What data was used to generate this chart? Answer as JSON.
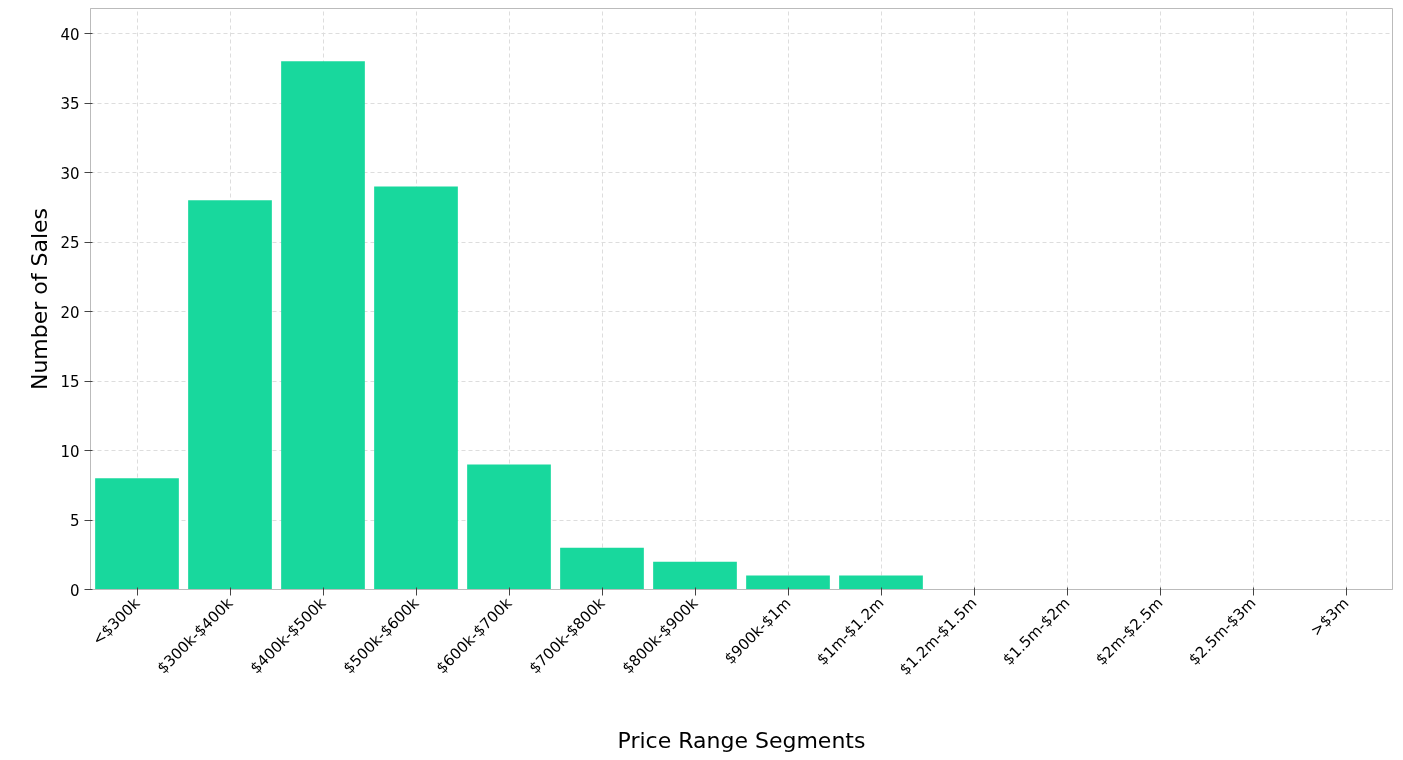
{
  "chart_data": {
    "type": "bar",
    "xlabel": "Price Range Segments",
    "ylabel": "Number of Sales",
    "categories": [
      "<$300k",
      "$300k-$400k",
      "$400k-$500k",
      "$500k-$600k",
      "$600k-$700k",
      "$700k-$800k",
      "$800k-$900k",
      "$900k-$1m",
      "$1m-$1.2m",
      "$1.2m-$1.5m",
      "$1.5m-$2m",
      "$2m-$2.5m",
      "$2.5m-$3m",
      ">$3m"
    ],
    "values": [
      8,
      28,
      38,
      29,
      9,
      3,
      2,
      1,
      1,
      0,
      0,
      0,
      0,
      0
    ],
    "color": "#18d89d",
    "ylim": [
      0,
      41.8
    ],
    "yticks": [
      0,
      5,
      10,
      15,
      20,
      25,
      30,
      35,
      40
    ],
    "grid": true
  }
}
